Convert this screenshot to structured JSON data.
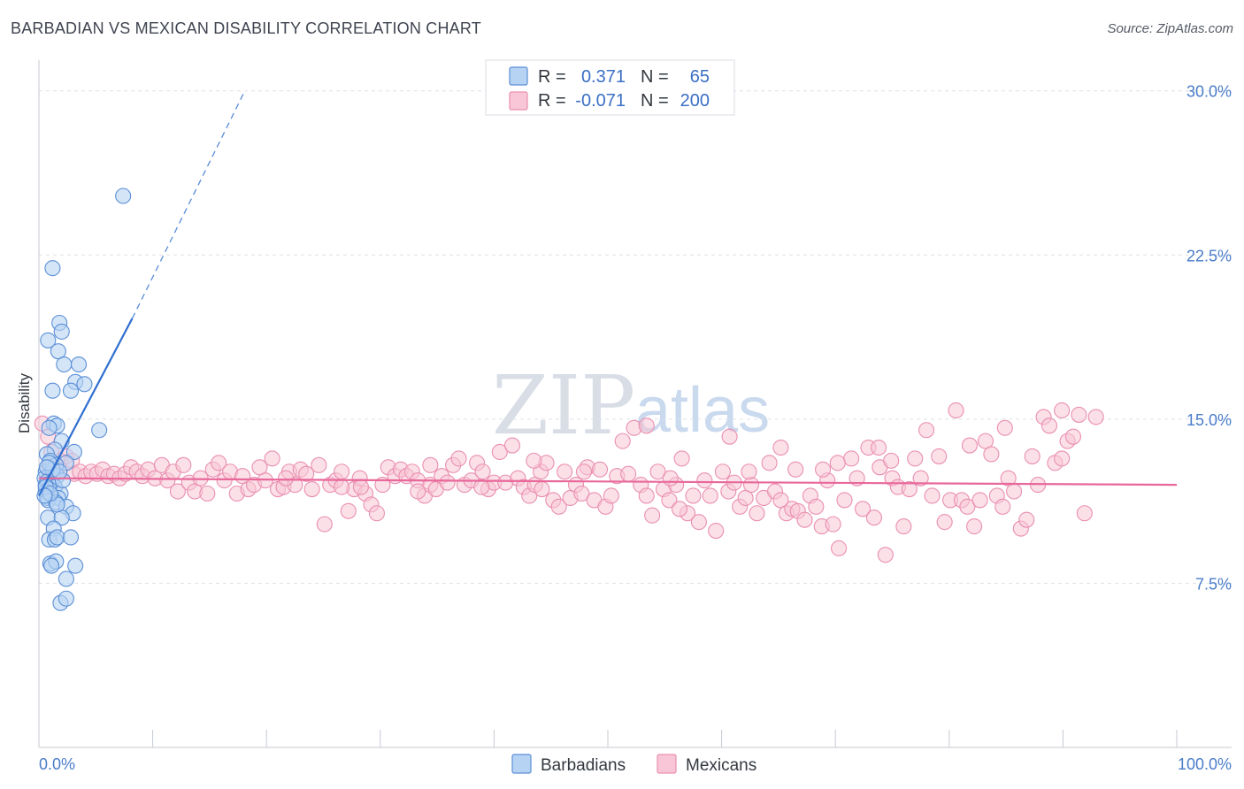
{
  "header": {
    "title": "BARBADIAN VS MEXICAN DISABILITY CORRELATION CHART",
    "source": "Source: ZipAtlas.com"
  },
  "watermark": {
    "zip": "ZIP",
    "atlas": "atlas"
  },
  "legend": {
    "rows": [
      {
        "r_label": "R =",
        "r_value": "0.371",
        "n_label": "N =",
        "n_value": "65"
      },
      {
        "r_label": "R =",
        "r_value": "-0.071",
        "n_label": "N =",
        "n_value": "200"
      }
    ]
  },
  "colors": {
    "barbadians_fill": "#b7d3f3",
    "barbadians_stroke": "#5b8fd6",
    "barbadians_line": "#2f6fd0",
    "mexicans_fill": "#f8c6d6",
    "mexicans_stroke": "#ea8fb0",
    "mexicans_line": "#e8689a",
    "tick_text": "#4a7cc9",
    "grid": "#dde1e7"
  },
  "chart_data": {
    "type": "scatter",
    "title": "BARBADIAN VS MEXICAN DISABILITY CORRELATION CHART",
    "xlabel": "",
    "ylabel": "Disability",
    "xlim": [
      0,
      100
    ],
    "ylim": [
      0,
      31
    ],
    "x_tick_labels": [
      "0.0%",
      "100.0%"
    ],
    "y_ticks": [
      7.5,
      15.0,
      22.5,
      30.0
    ],
    "y_tick_labels": [
      "7.5%",
      "15.0%",
      "22.5%",
      "30.0%"
    ],
    "legend_position": "top-center",
    "series": [
      {
        "name": "Barbadians",
        "r": 0.371,
        "n": 65,
        "trend": {
          "x": [
            0,
            8.2
          ],
          "y": [
            11.5,
            19.6
          ],
          "extended_x": [
            8.2,
            18
          ],
          "extended_y": [
            19.6,
            29.9
          ]
        },
        "points": [
          [
            7.4,
            25.2
          ],
          [
            1.2,
            21.9
          ],
          [
            1.8,
            19.4
          ],
          [
            2.0,
            19.0
          ],
          [
            0.8,
            18.6
          ],
          [
            1.7,
            18.1
          ],
          [
            2.2,
            17.5
          ],
          [
            3.5,
            17.5
          ],
          [
            3.2,
            16.7
          ],
          [
            4.0,
            16.6
          ],
          [
            1.2,
            16.3
          ],
          [
            2.8,
            16.3
          ],
          [
            1.3,
            14.8
          ],
          [
            1.6,
            14.7
          ],
          [
            0.9,
            14.6
          ],
          [
            5.3,
            14.5
          ],
          [
            2.0,
            14.0
          ],
          [
            1.4,
            13.6
          ],
          [
            3.1,
            13.5
          ],
          [
            0.7,
            13.4
          ],
          [
            1.0,
            13.1
          ],
          [
            2.4,
            13.0
          ],
          [
            1.5,
            12.9
          ],
          [
            0.6,
            12.6
          ],
          [
            1.0,
            12.5
          ],
          [
            1.3,
            12.4
          ],
          [
            1.6,
            12.4
          ],
          [
            0.5,
            12.3
          ],
          [
            0.8,
            12.2
          ],
          [
            1.1,
            12.1
          ],
          [
            0.6,
            12.0
          ],
          [
            1.4,
            11.9
          ],
          [
            0.9,
            11.8
          ],
          [
            0.6,
            11.7
          ],
          [
            1.9,
            11.6
          ],
          [
            1.1,
            11.5
          ],
          [
            0.7,
            11.4
          ],
          [
            1.7,
            11.4
          ],
          [
            0.8,
            11.3
          ],
          [
            1.5,
            11.2
          ],
          [
            2.4,
            11.0
          ],
          [
            3.0,
            10.7
          ],
          [
            0.8,
            10.5
          ],
          [
            2.0,
            10.5
          ],
          [
            1.3,
            10.0
          ],
          [
            0.9,
            9.5
          ],
          [
            1.4,
            9.5
          ],
          [
            1.6,
            9.6
          ],
          [
            2.8,
            9.6
          ],
          [
            1.0,
            8.4
          ],
          [
            1.5,
            8.5
          ],
          [
            1.1,
            8.3
          ],
          [
            3.2,
            8.3
          ],
          [
            2.4,
            7.7
          ],
          [
            1.9,
            6.6
          ],
          [
            2.4,
            6.8
          ],
          [
            0.6,
            11.9
          ],
          [
            1.2,
            12.7
          ],
          [
            0.9,
            13.0
          ],
          [
            1.6,
            11.1
          ],
          [
            0.7,
            12.8
          ],
          [
            2.1,
            12.2
          ],
          [
            1.0,
            11.6
          ],
          [
            1.8,
            12.6
          ],
          [
            0.5,
            11.5
          ]
        ]
      },
      {
        "name": "Mexicans",
        "r": -0.071,
        "n": 200,
        "trend": {
          "x": [
            0,
            100
          ],
          "y": [
            12.3,
            12.0
          ]
        },
        "points": [
          [
            0.3,
            14.8
          ],
          [
            0.8,
            14.2
          ],
          [
            1.1,
            13.5
          ],
          [
            1.9,
            13.1
          ],
          [
            2.4,
            13.3
          ],
          [
            2.9,
            13.1
          ],
          [
            0.9,
            12.8
          ],
          [
            1.6,
            12.7
          ],
          [
            3.1,
            12.5
          ],
          [
            3.6,
            12.6
          ],
          [
            4.1,
            12.4
          ],
          [
            4.6,
            12.6
          ],
          [
            5.1,
            12.5
          ],
          [
            5.6,
            12.7
          ],
          [
            6.1,
            12.4
          ],
          [
            6.6,
            12.5
          ],
          [
            7.1,
            12.3
          ],
          [
            7.6,
            12.5
          ],
          [
            8.1,
            12.8
          ],
          [
            8.6,
            12.6
          ],
          [
            9.1,
            12.4
          ],
          [
            9.6,
            12.7
          ],
          [
            10.2,
            12.3
          ],
          [
            10.8,
            12.9
          ],
          [
            11.3,
            12.2
          ],
          [
            11.8,
            12.6
          ],
          [
            12.2,
            11.7
          ],
          [
            12.7,
            12.9
          ],
          [
            13.2,
            12.1
          ],
          [
            13.7,
            11.7
          ],
          [
            14.2,
            12.3
          ],
          [
            14.8,
            11.6
          ],
          [
            15.3,
            12.7
          ],
          [
            15.8,
            13.0
          ],
          [
            16.3,
            12.2
          ],
          [
            16.8,
            12.6
          ],
          [
            17.4,
            11.6
          ],
          [
            17.9,
            12.4
          ],
          [
            18.4,
            11.8
          ],
          [
            18.9,
            12.0
          ],
          [
            19.4,
            12.8
          ],
          [
            19.9,
            12.2
          ],
          [
            20.5,
            13.2
          ],
          [
            21.0,
            11.8
          ],
          [
            21.5,
            11.9
          ],
          [
            22.0,
            12.6
          ],
          [
            22.5,
            12.0
          ],
          [
            23.0,
            12.7
          ],
          [
            23.5,
            12.5
          ],
          [
            24.0,
            11.8
          ],
          [
            24.6,
            12.9
          ],
          [
            25.1,
            10.2
          ],
          [
            25.6,
            12.0
          ],
          [
            26.1,
            12.2
          ],
          [
            26.6,
            12.6
          ],
          [
            27.2,
            10.8
          ],
          [
            27.7,
            11.8
          ],
          [
            28.2,
            12.3
          ],
          [
            28.7,
            11.6
          ],
          [
            29.2,
            11.1
          ],
          [
            29.7,
            10.7
          ],
          [
            30.2,
            12.0
          ],
          [
            30.7,
            12.8
          ],
          [
            31.3,
            12.4
          ],
          [
            31.8,
            12.7
          ],
          [
            32.3,
            12.4
          ],
          [
            32.8,
            12.6
          ],
          [
            33.3,
            12.2
          ],
          [
            33.9,
            11.5
          ],
          [
            34.4,
            12.0
          ],
          [
            34.9,
            11.8
          ],
          [
            35.4,
            12.4
          ],
          [
            35.9,
            12.1
          ],
          [
            36.4,
            12.9
          ],
          [
            36.9,
            13.2
          ],
          [
            37.4,
            12.0
          ],
          [
            38.0,
            12.2
          ],
          [
            38.5,
            13.0
          ],
          [
            39.0,
            12.6
          ],
          [
            39.5,
            11.8
          ],
          [
            40.0,
            12.1
          ],
          [
            40.5,
            13.5
          ],
          [
            41.0,
            12.1
          ],
          [
            41.6,
            13.8
          ],
          [
            42.1,
            12.3
          ],
          [
            42.6,
            11.9
          ],
          [
            43.1,
            11.5
          ],
          [
            43.6,
            12.0
          ],
          [
            44.1,
            12.6
          ],
          [
            44.6,
            13.0
          ],
          [
            45.2,
            11.3
          ],
          [
            45.7,
            11.0
          ],
          [
            46.2,
            12.6
          ],
          [
            46.7,
            11.4
          ],
          [
            47.2,
            12.0
          ],
          [
            47.7,
            11.6
          ],
          [
            48.2,
            12.8
          ],
          [
            48.8,
            11.3
          ],
          [
            49.3,
            12.7
          ],
          [
            49.8,
            11.0
          ],
          [
            50.3,
            11.5
          ],
          [
            50.8,
            12.4
          ],
          [
            51.3,
            14.0
          ],
          [
            51.8,
            12.5
          ],
          [
            52.3,
            14.6
          ],
          [
            52.9,
            12.0
          ],
          [
            53.4,
            11.5
          ],
          [
            53.9,
            10.6
          ],
          [
            54.4,
            12.6
          ],
          [
            54.9,
            11.8
          ],
          [
            55.4,
            11.3
          ],
          [
            56.0,
            12.0
          ],
          [
            56.5,
            13.2
          ],
          [
            57.0,
            10.7
          ],
          [
            57.5,
            11.5
          ],
          [
            58.0,
            10.3
          ],
          [
            58.5,
            12.2
          ],
          [
            59.0,
            11.5
          ],
          [
            59.5,
            9.9
          ],
          [
            60.1,
            12.6
          ],
          [
            60.6,
            11.7
          ],
          [
            61.1,
            12.1
          ],
          [
            61.6,
            11.0
          ],
          [
            62.1,
            11.4
          ],
          [
            62.6,
            12.0
          ],
          [
            63.1,
            10.7
          ],
          [
            63.7,
            11.4
          ],
          [
            64.2,
            13.0
          ],
          [
            64.7,
            11.7
          ],
          [
            65.2,
            11.3
          ],
          [
            65.7,
            10.7
          ],
          [
            66.2,
            10.9
          ],
          [
            66.7,
            10.8
          ],
          [
            67.3,
            10.4
          ],
          [
            67.8,
            11.5
          ],
          [
            68.3,
            11.0
          ],
          [
            68.8,
            10.1
          ],
          [
            69.3,
            12.2
          ],
          [
            69.8,
            10.2
          ],
          [
            70.3,
            9.1
          ],
          [
            70.8,
            11.3
          ],
          [
            71.4,
            13.2
          ],
          [
            71.9,
            12.3
          ],
          [
            72.4,
            10.9
          ],
          [
            72.9,
            13.7
          ],
          [
            73.4,
            10.5
          ],
          [
            73.9,
            12.8
          ],
          [
            74.4,
            8.8
          ],
          [
            75.0,
            12.3
          ],
          [
            75.5,
            11.9
          ],
          [
            76.0,
            10.1
          ],
          [
            76.5,
            11.8
          ],
          [
            77.0,
            13.2
          ],
          [
            77.5,
            12.3
          ],
          [
            78.0,
            14.5
          ],
          [
            78.5,
            11.5
          ],
          [
            79.1,
            13.3
          ],
          [
            79.6,
            10.3
          ],
          [
            80.1,
            11.3
          ],
          [
            80.6,
            15.4
          ],
          [
            81.1,
            11.3
          ],
          [
            81.6,
            11.0
          ],
          [
            82.2,
            10.1
          ],
          [
            82.7,
            11.3
          ],
          [
            83.2,
            14.0
          ],
          [
            83.7,
            13.4
          ],
          [
            84.2,
            11.5
          ],
          [
            84.7,
            11.0
          ],
          [
            85.2,
            12.3
          ],
          [
            85.7,
            11.7
          ],
          [
            86.3,
            10.0
          ],
          [
            86.8,
            10.4
          ],
          [
            87.3,
            13.3
          ],
          [
            87.8,
            12.0
          ],
          [
            88.3,
            15.1
          ],
          [
            88.8,
            14.7
          ],
          [
            89.3,
            13.0
          ],
          [
            89.9,
            15.4
          ],
          [
            90.4,
            14.0
          ],
          [
            90.9,
            14.2
          ],
          [
            91.4,
            15.2
          ],
          [
            91.9,
            10.7
          ],
          [
            43.5,
            13.1
          ],
          [
            56.3,
            10.9
          ],
          [
            66.5,
            12.7
          ],
          [
            73.8,
            13.7
          ],
          [
            28.3,
            11.9
          ],
          [
            34.4,
            12.9
          ],
          [
            21.7,
            12.3
          ],
          [
            38.9,
            11.9
          ],
          [
            74.9,
            13.1
          ],
          [
            84.9,
            14.6
          ],
          [
            68.9,
            12.7
          ],
          [
            60.7,
            14.2
          ],
          [
            53.4,
            14.7
          ],
          [
            65.2,
            13.7
          ],
          [
            89.9,
            13.2
          ],
          [
            92.9,
            15.1
          ],
          [
            47.9,
            12.6
          ],
          [
            26.6,
            11.9
          ],
          [
            55.5,
            12.3
          ],
          [
            81.8,
            13.8
          ],
          [
            44.2,
            11.8
          ],
          [
            62.4,
            12.6
          ],
          [
            33.3,
            11.7
          ],
          [
            70.2,
            13.0
          ]
        ]
      }
    ]
  }
}
